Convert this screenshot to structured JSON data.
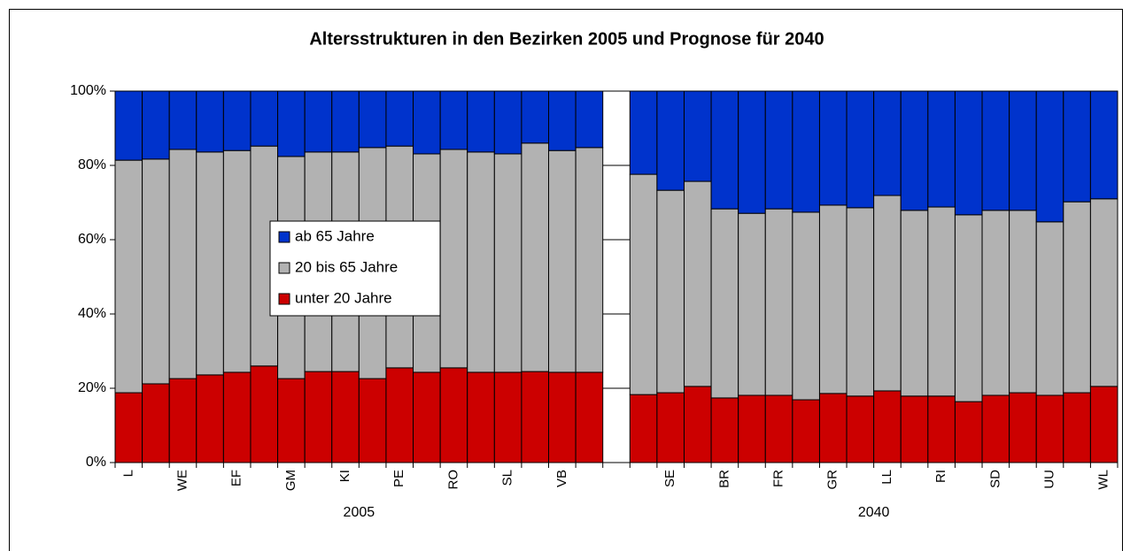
{
  "chart_data": {
    "type": "stacked_bar",
    "title": "Altersstrukturen in den Bezirken 2005 und Prognose für 2040",
    "categories": [
      "L",
      null,
      "WE",
      null,
      "EF",
      null,
      "GM",
      null,
      "KI",
      null,
      "PE",
      null,
      "RO",
      null,
      "SL",
      null,
      "VB",
      null,
      null,
      null,
      "SE",
      null,
      "BR",
      null,
      "FR",
      null,
      "GR",
      null,
      "LL",
      null,
      "RI",
      null,
      "SD",
      null,
      "UU",
      null,
      "WL"
    ],
    "group_labels": [
      "2005",
      "2040"
    ],
    "series": [
      {
        "name": "unter 20 Jahre",
        "color": "#cc0000",
        "values": [
          18.8,
          21.2,
          22.6,
          23.6,
          24.3,
          26.0,
          22.6,
          24.5,
          24.5,
          22.6,
          25.5,
          24.3,
          25.5,
          24.3,
          24.3,
          24.5,
          24.3,
          24.3,
          null,
          18.3,
          18.8,
          20.5,
          17.4,
          18.1,
          18.1,
          16.9,
          18.6,
          17.9,
          19.3,
          17.9,
          17.9,
          16.4,
          18.1,
          18.8,
          18.1,
          18.8,
          20.5
        ]
      },
      {
        "name": "20 bis 65 Jahre",
        "color": "#b2b2b2",
        "values": [
          62.6,
          60.5,
          61.7,
          60.0,
          59.7,
          59.2,
          59.8,
          59.1,
          59.1,
          62.2,
          59.7,
          58.8,
          58.8,
          59.3,
          58.8,
          61.5,
          59.7,
          60.5,
          null,
          59.3,
          54.5,
          55.2,
          50.9,
          49.0,
          50.2,
          50.5,
          50.7,
          50.7,
          52.6,
          50.0,
          50.9,
          50.3,
          49.8,
          49.1,
          46.7,
          51.4,
          50.5
        ]
      },
      {
        "name": "ab 65 Jahre",
        "color": "#0033cc",
        "values": [
          18.6,
          18.3,
          15.7,
          16.4,
          16.0,
          14.8,
          17.6,
          16.4,
          16.4,
          15.2,
          14.8,
          16.9,
          15.7,
          16.4,
          16.9,
          14.0,
          16.0,
          15.2,
          null,
          22.4,
          26.7,
          24.3,
          31.7,
          32.9,
          31.7,
          32.6,
          30.7,
          31.4,
          28.1,
          32.1,
          31.2,
          33.3,
          32.1,
          32.1,
          35.2,
          29.8,
          29.0
        ]
      }
    ],
    "ylim": [
      0,
      100
    ],
    "yticks": [
      {
        "value": 0,
        "label": "0%"
      },
      {
        "value": 20,
        "label": "20%"
      },
      {
        "value": 40,
        "label": "40%"
      },
      {
        "value": 60,
        "label": "60%"
      },
      {
        "value": 80,
        "label": "80%"
      },
      {
        "value": 100,
        "label": "100%"
      }
    ]
  }
}
